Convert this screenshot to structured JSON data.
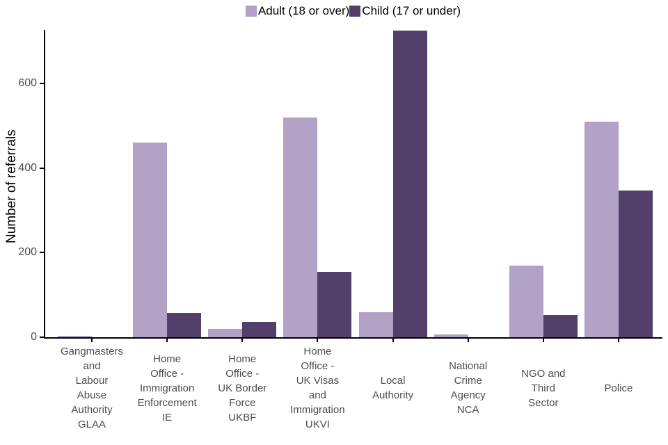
{
  "colors": {
    "adult": "#B3A2C7",
    "child": "#52406B",
    "axis": "#000000",
    "axis_text": "#4D4D4D"
  },
  "chart_data": {
    "type": "bar",
    "title": "",
    "xlabel": "",
    "ylabel": "Number of referrals",
    "ylim": [
      0,
      727
    ],
    "yticks": [
      0,
      200,
      400,
      600
    ],
    "grid": false,
    "legend_position": "top-center",
    "categories": [
      "Gangmasters and Labour Abuse Authority GLAA",
      "Home Office - Immigration Enforcement IE",
      "Home Office - UK Border Force UKBF",
      "Home Office - UK Visas and Immigration UKVI",
      "Local Authority",
      "National Crime Agency NCA",
      "NGO and Third Sector",
      "Police"
    ],
    "category_label_lines": [
      "Gangmasters\nand\nLabour\nAbuse\nAuthority\nGLAA",
      "Home\nOffice -\nImmigration\nEnforcement\nIE",
      "Home\nOffice -\nUK Border\nForce\nUKBF",
      "Home\nOffice -\nUK Visas\nand\nImmigration\nUKVI",
      "Local\nAuthority",
      "National\nCrime\nAgency\nNCA",
      "NGO and\nThird\nSector",
      "Police"
    ],
    "series": [
      {
        "name": "Adult (18 or over)",
        "color": "#B3A2C7",
        "values": [
          3,
          460,
          20,
          520,
          60,
          6,
          170,
          510
        ]
      },
      {
        "name": "Child (17 or under)",
        "color": "#52406B",
        "values": [
          0,
          57,
          36,
          155,
          725,
          0,
          53,
          347
        ]
      }
    ]
  }
}
